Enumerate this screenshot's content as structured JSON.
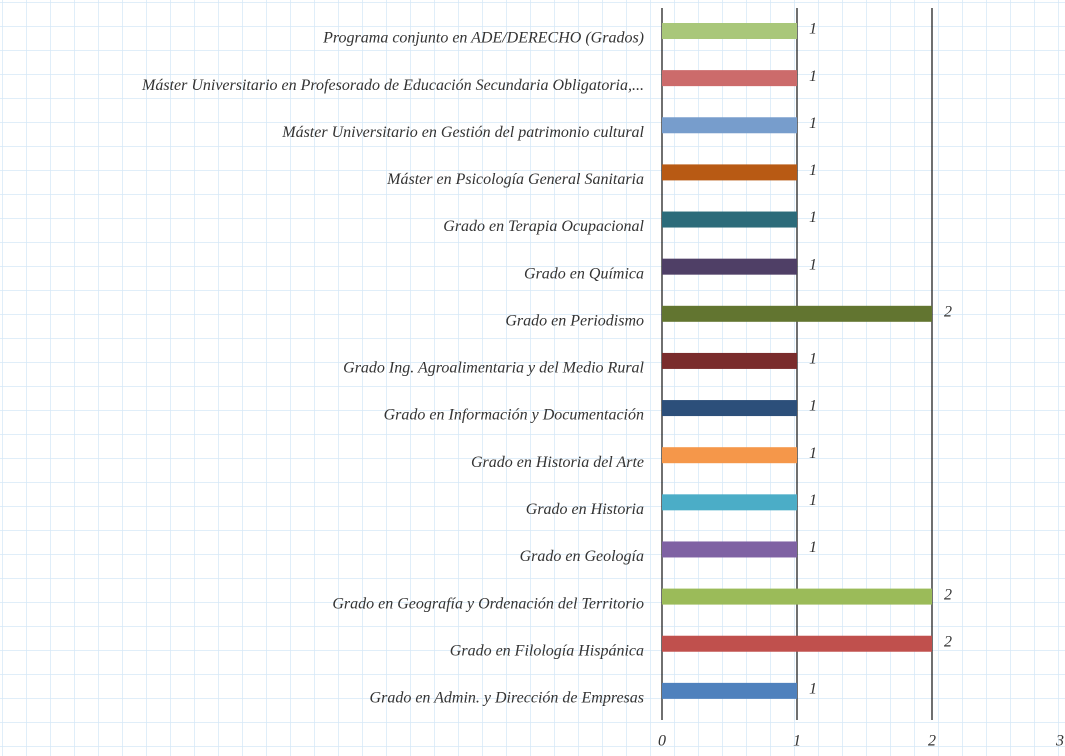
{
  "chart_data": {
    "type": "bar",
    "orientation": "horizontal",
    "categories": [
      "Programa conjunto en ADE/DERECHO (Grados)",
      "Máster Universitario en Profesorado de Educación Secundaria Obligatoria,...",
      "Máster Universitario en Gestión del patrimonio cultural",
      "Máster en Psicología General Sanitaria",
      "Grado en Terapia Ocupacional",
      "Grado en Química",
      "Grado en Periodismo",
      "Grado Ing. Agroalimentaria y del Medio Rural",
      "Grado en Información y Documentación",
      "Grado en Historia del Arte",
      "Grado en Historia",
      "Grado en Geología",
      "Grado en Geografía y Ordenación del Territorio",
      "Grado en Filología Hispánica",
      "Grado en Admin. y Dirección de Empresas"
    ],
    "values": [
      1,
      1,
      1,
      1,
      1,
      1,
      2,
      1,
      1,
      1,
      1,
      1,
      2,
      2,
      1
    ],
    "colors": [
      "#a9c77a",
      "#cc6b6b",
      "#779dcc",
      "#b85a14",
      "#2c6b7a",
      "#4f3f66",
      "#627530",
      "#7a2c2c",
      "#2c4f7a",
      "#f5974a",
      "#4badc7",
      "#7f62a3",
      "#9bbb59",
      "#c0504d",
      "#4f81bd"
    ],
    "xlim": [
      0,
      3
    ],
    "xticks": [
      0,
      1,
      2,
      3
    ],
    "grid": true
  }
}
